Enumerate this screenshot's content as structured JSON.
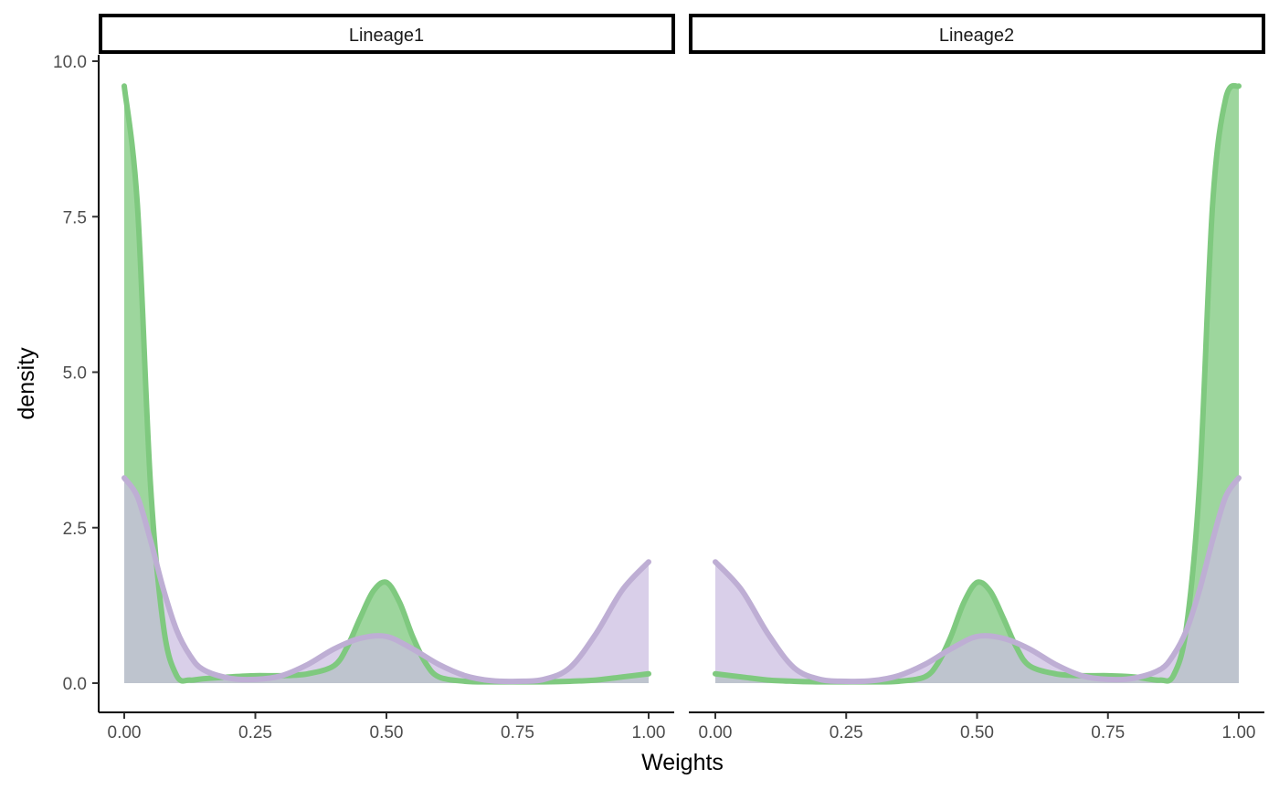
{
  "chart_data": {
    "type": "area",
    "xlabel": "Weights",
    "ylabel": "density",
    "xlim": [
      0,
      1
    ],
    "ylim": [
      0,
      10
    ],
    "x_ticks": [
      0,
      0.25,
      0.5,
      0.75,
      1
    ],
    "x_tick_labels": [
      "0.00",
      "0.25",
      "0.50",
      "0.75",
      "1.00"
    ],
    "y_ticks": [
      0,
      2.5,
      5,
      7.5,
      10
    ],
    "y_tick_labels": [
      "0.0",
      "2.5",
      "5.0",
      "7.5",
      "10.0"
    ],
    "grid": false,
    "legend": "none",
    "colors": {
      "series_a_line": "#7fc97f",
      "series_a_fill": "#98d498",
      "series_b_line": "#beaed4",
      "series_b_fill": "#cbbde0",
      "overlap_fill": "#b2b2c8"
    },
    "panels": [
      {
        "label": "Lineage1",
        "series": [
          {
            "color": "#7fc97f",
            "x": [
              0,
              0.025,
              0.05,
              0.075,
              0.1,
              0.125,
              0.15,
              0.2,
              0.25,
              0.3,
              0.35,
              0.4,
              0.425,
              0.45,
              0.475,
              0.5,
              0.525,
              0.55,
              0.575,
              0.6,
              0.65,
              0.7,
              0.75,
              0.8,
              0.85,
              0.9,
              0.95,
              1
            ],
            "y": [
              9.6,
              7.7,
              3.2,
              0.9,
              0.12,
              0.05,
              0.07,
              0.1,
              0.12,
              0.12,
              0.15,
              0.28,
              0.58,
              1.05,
              1.48,
              1.62,
              1.3,
              0.75,
              0.32,
              0.1,
              0.03,
              0.02,
              0.02,
              0.02,
              0.03,
              0.05,
              0.1,
              0.15
            ]
          },
          {
            "color": "#beaed4",
            "x": [
              0,
              0.025,
              0.05,
              0.075,
              0.1,
              0.125,
              0.15,
              0.2,
              0.25,
              0.3,
              0.35,
              0.4,
              0.45,
              0.5,
              0.55,
              0.6,
              0.65,
              0.7,
              0.75,
              0.8,
              0.85,
              0.9,
              0.95,
              1
            ],
            "y": [
              3.3,
              3.0,
              2.3,
              1.5,
              0.85,
              0.45,
              0.22,
              0.08,
              0.06,
              0.12,
              0.3,
              0.55,
              0.72,
              0.75,
              0.55,
              0.3,
              0.12,
              0.04,
              0.03,
              0.06,
              0.25,
              0.8,
              1.5,
              1.95
            ]
          }
        ]
      },
      {
        "label": "Lineage2",
        "series": [
          {
            "color": "#7fc97f",
            "x": [
              0,
              0.05,
              0.1,
              0.15,
              0.2,
              0.25,
              0.3,
              0.35,
              0.4,
              0.425,
              0.45,
              0.475,
              0.5,
              0.525,
              0.55,
              0.575,
              0.6,
              0.65,
              0.7,
              0.75,
              0.8,
              0.825,
              0.85,
              0.875,
              0.9,
              0.925,
              0.95,
              0.975,
              1
            ],
            "y": [
              0.15,
              0.1,
              0.05,
              0.03,
              0.02,
              0.02,
              0.02,
              0.03,
              0.1,
              0.32,
              0.75,
              1.3,
              1.62,
              1.48,
              1.05,
              0.58,
              0.28,
              0.15,
              0.12,
              0.12,
              0.1,
              0.07,
              0.05,
              0.12,
              0.9,
              3.2,
              7.7,
              9.4,
              9.6
            ]
          },
          {
            "color": "#beaed4",
            "x": [
              0,
              0.05,
              0.1,
              0.15,
              0.2,
              0.25,
              0.3,
              0.35,
              0.4,
              0.45,
              0.5,
              0.55,
              0.6,
              0.65,
              0.7,
              0.75,
              0.8,
              0.85,
              0.875,
              0.9,
              0.925,
              0.95,
              0.975,
              1
            ],
            "y": [
              1.95,
              1.5,
              0.8,
              0.25,
              0.06,
              0.03,
              0.04,
              0.12,
              0.3,
              0.55,
              0.75,
              0.72,
              0.55,
              0.3,
              0.12,
              0.06,
              0.08,
              0.22,
              0.45,
              0.85,
              1.5,
              2.3,
              3.0,
              3.3
            ]
          }
        ]
      }
    ]
  }
}
